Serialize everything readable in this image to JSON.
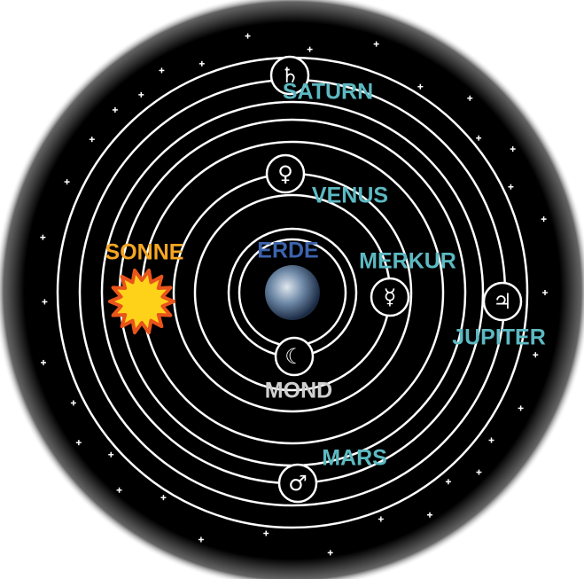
{
  "nodes": [
    {
      "label": "SATURN",
      "symbol": "♄"
    },
    {
      "label": "VENUS",
      "symbol": "♀"
    },
    {
      "label": "ERDE"
    },
    {
      "label": "SONNE"
    },
    {
      "label": "MERKUR",
      "symbol": "☿"
    },
    {
      "label": "JUPITER",
      "symbol": "♃"
    },
    {
      "label": "MOND",
      "symbol": "☾"
    },
    {
      "label": "MARS",
      "symbol": "♂"
    }
  ]
}
